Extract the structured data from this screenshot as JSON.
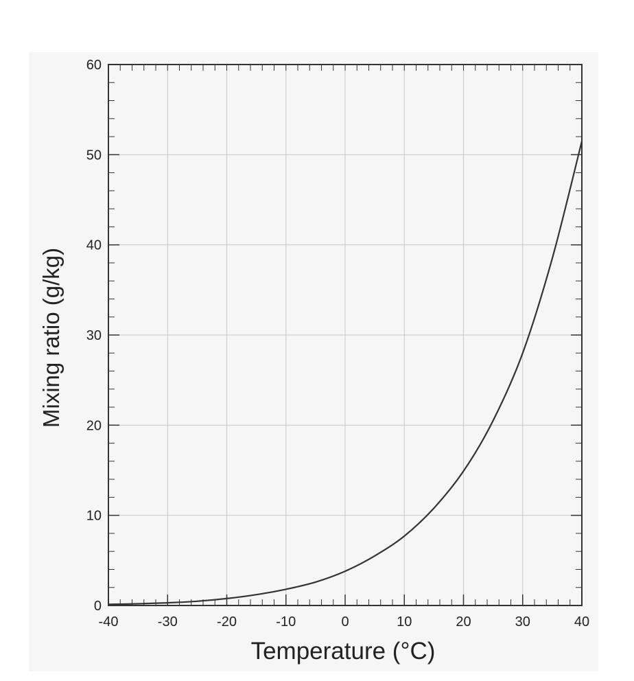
{
  "chart_data": {
    "type": "line",
    "title": "",
    "xlabel": "Temperature (°C)",
    "ylabel": "Mixing ratio (g/kg)",
    "xlim": [
      -40,
      40
    ],
    "ylim": [
      0,
      60
    ],
    "x_ticks": [
      -40,
      -30,
      -20,
      -10,
      0,
      10,
      20,
      30,
      40
    ],
    "y_ticks": [
      0,
      10,
      20,
      30,
      40,
      50,
      60
    ],
    "x_tick_labels": [
      "-40",
      "-30",
      "-20",
      "-10",
      "0",
      "10",
      "20",
      "30",
      "40"
    ],
    "y_tick_labels": [
      "0",
      "10",
      "20",
      "30",
      "40",
      "50",
      "60"
    ],
    "grid": true,
    "legend": "none",
    "line_color": "#333333",
    "series": [
      {
        "x": [
          -40,
          -35,
          -30,
          -25,
          -20,
          -15,
          -10,
          -5,
          0,
          5,
          10,
          15,
          20,
          25,
          30,
          35,
          40
        ],
        "y": [
          0.12,
          0.19,
          0.3,
          0.47,
          0.77,
          1.2,
          1.8,
          2.6,
          3.8,
          5.5,
          7.7,
          10.8,
          14.9,
          20.5,
          28.0,
          38.5,
          51.5
        ]
      }
    ]
  }
}
